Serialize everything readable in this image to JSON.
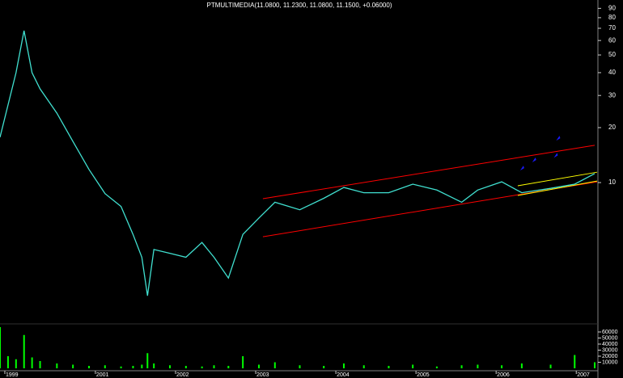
{
  "chart_data": [
    {
      "type": "line",
      "title": "PTMULTIMEDIA(11.0800, 11.2300, 11.0800, 11.1500, +0.06000)",
      "x": [
        1999.81,
        1999.91,
        2000.01,
        2000.11,
        2000.21,
        2000.31,
        2000.52,
        2000.72,
        2000.92,
        2001.12,
        2001.32,
        2001.47,
        2001.58,
        2001.65,
        2001.73,
        2001.93,
        2002.13,
        2002.33,
        2002.48,
        2002.66,
        2002.84,
        2003.04,
        2003.24,
        2003.55,
        2003.85,
        2004.1,
        2004.35,
        2004.66,
        2004.96,
        2005.26,
        2005.57,
        2005.77,
        2006.07,
        2006.32,
        2006.68,
        2006.98,
        2007.23
      ],
      "series": [
        {
          "color": "#40e0d0",
          "values": [
            17.7,
            26.6,
            40,
            67.9,
            40,
            32.6,
            24,
            16.8,
            11.8,
            8.7,
            7.4,
            5.2,
            3.9,
            2.4,
            4.3,
            4.1,
            3.9,
            4.7,
            3.9,
            3.0,
            5.2,
            6.4,
            7.8,
            7.1,
            8.2,
            9.4,
            8.8,
            8.8,
            9.8,
            9.1,
            7.8,
            9.1,
            10.1,
            8.8,
            9.3,
            9.8,
            11.2
          ]
        }
      ],
      "lines": [
        {
          "color": "#ff0000",
          "x": [
            2003.09,
            2007.23
          ],
          "values": [
            8.16,
            16.0
          ]
        },
        {
          "color": "#ff0000",
          "x": [
            2003.09,
            2007.26
          ],
          "values": [
            5.05,
            10.1
          ]
        },
        {
          "color": "#ffff00",
          "x": [
            2006.27,
            2007.26
          ],
          "values": [
            9.6,
            11.4
          ]
        },
        {
          "color": "#ffff00",
          "x": [
            2006.27,
            2007.26
          ],
          "values": [
            8.5,
            10.2
          ]
        }
      ],
      "markers": {
        "color": "#1a1aff",
        "x": [
          2006.32,
          2006.47,
          2006.74,
          2006.77
        ],
        "values": [
          12.0,
          13.3,
          14.1,
          17.5
        ]
      },
      "xlim": [
        1999.81,
        2007.26
      ],
      "ylim": [
        1.7,
        100
      ],
      "log_scale": true,
      "yticks": [
        10,
        20,
        30,
        40,
        50,
        60,
        70,
        80,
        90
      ]
    },
    {
      "type": "bar",
      "x": [
        1999.81,
        1999.91,
        2000.01,
        2000.11,
        2000.21,
        2000.31,
        2000.52,
        2000.72,
        2000.92,
        2001.12,
        2001.32,
        2001.47,
        2001.58,
        2001.65,
        2001.73,
        2001.93,
        2002.13,
        2002.33,
        2002.48,
        2002.66,
        2002.84,
        2003.04,
        2003.24,
        2003.55,
        2003.85,
        2004.1,
        2004.35,
        2004.66,
        2004.96,
        2005.26,
        2005.57,
        2005.77,
        2006.07,
        2006.32,
        2006.68,
        2006.98,
        2007.23
      ],
      "values": [
        68000,
        20000,
        15000,
        55000,
        18000,
        12000,
        8000,
        6000,
        4000,
        5000,
        3000,
        4000,
        6000,
        25000,
        8000,
        5000,
        4000,
        3000,
        5000,
        4000,
        20000,
        6000,
        10000,
        5000,
        4000,
        8000,
        5000,
        4000,
        6000,
        3000,
        5000,
        6000,
        5000,
        8000,
        6000,
        22000,
        10000
      ],
      "color": "#00ff00",
      "xlim": [
        1999.81,
        2007.26
      ],
      "ylim": [
        0,
        68000
      ],
      "yticks": [
        10000,
        20000,
        30000,
        40000,
        50000,
        60000
      ],
      "xticks": [
        {
          "value": 1999.87,
          "label": "1999"
        },
        2001,
        2002,
        2003,
        2004,
        2005,
        2006,
        2007
      ]
    }
  ]
}
